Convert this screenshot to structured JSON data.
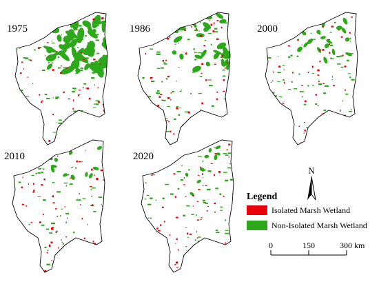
{
  "panels": [
    {
      "year": "1975"
    },
    {
      "year": "1986"
    },
    {
      "year": "2000"
    },
    {
      "year": "2010"
    },
    {
      "year": "2020"
    }
  ],
  "legend": {
    "title": "Legend",
    "items": [
      {
        "label": "Isolated Marsh Wetland",
        "color": "#e8000b"
      },
      {
        "label": "Non-Isolated Marsh Wetland",
        "color": "#2ca81a"
      }
    ]
  },
  "north": "N",
  "scale_bar": {
    "labels": [
      "0",
      "150",
      "300 km"
    ]
  }
}
